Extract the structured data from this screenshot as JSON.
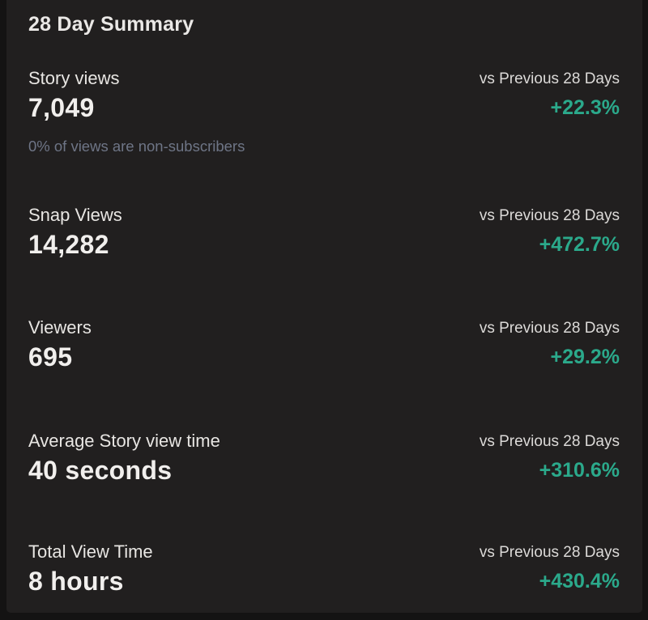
{
  "page": {
    "title": "28 Day Summary"
  },
  "comparison_label": "vs Previous 28 Days",
  "colors": {
    "background": "#211f1f",
    "positive": "#2ba98b",
    "muted_caption": "#6e7586"
  },
  "metrics": [
    {
      "label": "Story views",
      "value": "7,049",
      "comparison": "vs Previous 28 Days",
      "change": "+22.3%",
      "caption": "0% of views are non-subscribers"
    },
    {
      "label": "Snap Views",
      "value": "14,282",
      "comparison": "vs Previous 28 Days",
      "change": "+472.7%"
    },
    {
      "label": "Viewers",
      "value": "695",
      "comparison": "vs Previous 28 Days",
      "change": "+29.2%"
    },
    {
      "label": "Average Story view time",
      "value": "40 seconds",
      "comparison": "vs Previous 28 Days",
      "change": "+310.6%"
    },
    {
      "label": "Total View Time",
      "value": "8 hours",
      "comparison": "vs Previous 28 Days",
      "change": "+430.4%"
    }
  ]
}
